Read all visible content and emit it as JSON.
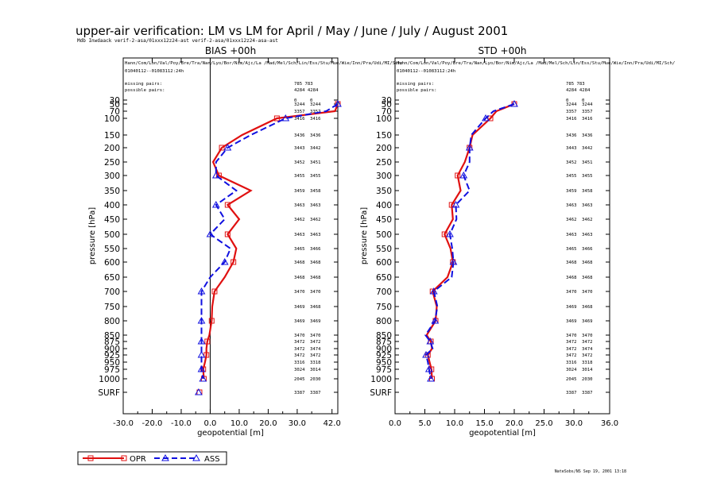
{
  "title": "upper-air verification: LM vs LM for April / May / June / July / August 2001",
  "subtitle": "Mdb Inwdaack verif-2-asa/01xxx12z24-ast verif-2-asa/01xxx12z24-asa-ast",
  "footer": "NateSobs/NS Sep 19, 2001 13:18",
  "legend": {
    "items": [
      {
        "label": "OPR",
        "color": "#e01010",
        "marker": "square",
        "dash": "solid"
      },
      {
        "label": "ASS",
        "color": "#1010e0",
        "marker": "triangle",
        "dash": "dashed"
      }
    ]
  },
  "panel_info": {
    "stations": "Hann/Com/Lon/Val/Poy/Bre/Tra/Nan/Lyo/Bor/Nim/Ajc/La /Mad/Mel/Sch/Lin/Ess/Stu/Mue/Wie/Inn/Pra/Udi/MI/Sch/",
    "period": "01040112--01083112:24h",
    "missing_label": "missing pairs:",
    "possible_label": "possible pairs:",
    "missing_values": "785  783",
    "possible_values": "4284 4284"
  },
  "y_axis": {
    "label": "pressure  [hPa]",
    "levels": [
      "30",
      "50",
      "70",
      "100",
      "150",
      "200",
      "250",
      "300",
      "350",
      "400",
      "450",
      "500",
      "550",
      "600",
      "650",
      "700",
      "750",
      "800",
      "850",
      "875",
      "900",
      "925",
      "950",
      "975",
      "1000",
      "SURF"
    ]
  },
  "pair_counts": [
    [
      "0",
      "0"
    ],
    [
      "3244",
      "3244"
    ],
    [
      "3357",
      "3357"
    ],
    [
      "3416",
      "3416"
    ],
    [
      "3436",
      "3436"
    ],
    [
      "3443",
      "3442"
    ],
    [
      "3452",
      "3451"
    ],
    [
      "3455",
      "3455"
    ],
    [
      "3459",
      "3458"
    ],
    [
      "3463",
      "3463"
    ],
    [
      "3462",
      "3462"
    ],
    [
      "3463",
      "3463"
    ],
    [
      "3465",
      "3466"
    ],
    [
      "3468",
      "3468"
    ],
    [
      "3468",
      "3468"
    ],
    [
      "3470",
      "3470"
    ],
    [
      "3469",
      "3468"
    ],
    [
      "3469",
      "3469"
    ],
    [
      "3470",
      "3470"
    ],
    [
      "3472",
      "3472"
    ],
    [
      "3472",
      "3474"
    ],
    [
      "3472",
      "3472"
    ],
    [
      "3316",
      "3318"
    ],
    [
      "3024",
      "3014"
    ],
    [
      "2045",
      "2030"
    ],
    [
      "3387",
      "3387"
    ]
  ],
  "chart_data": [
    {
      "type": "line",
      "title": "BIAS     +00h",
      "xlabel": "geopotential  [m]",
      "ylabel": "pressure  [hPa]",
      "xlim": [
        -30,
        45
      ],
      "x_ticks": [
        "-30.0",
        "-20.0",
        "-10.0",
        "0.0",
        "10.0",
        "20.0",
        "30.0",
        "42.0"
      ],
      "x_tick_values": [
        -30,
        -20,
        -10,
        0,
        10,
        20,
        30,
        42
      ],
      "zero_line": true,
      "categories": [
        "30",
        "50",
        "70",
        "100",
        "150",
        "200",
        "250",
        "300",
        "350",
        "400",
        "450",
        "500",
        "550",
        "600",
        "650",
        "700",
        "750",
        "800",
        "850",
        "875",
        "900",
        "925",
        "950",
        "975",
        "1000",
        "SURF"
      ],
      "series": [
        {
          "name": "OPR",
          "color": "#e01010",
          "values": [
            null,
            44,
            43,
            23,
            11,
            4,
            1,
            3,
            14,
            6,
            10,
            6,
            9,
            8,
            5,
            1.5,
            0.7,
            0.5,
            -0.3,
            -1,
            -1.3,
            -1.3,
            -1.8,
            -2.4,
            -2.2,
            -3.7
          ]
        },
        {
          "name": "ASS",
          "color": "#1010e0",
          "values": [
            null,
            44,
            40,
            26,
            14,
            6,
            2,
            2,
            9,
            2,
            5,
            0,
            7,
            5,
            0,
            -3,
            -3,
            -3,
            -3,
            -3,
            -3,
            -3,
            -3,
            -3,
            -2.5,
            -4
          ]
        }
      ]
    },
    {
      "type": "line",
      "title": "STD     +00h",
      "xlabel": "geopotential  [m]",
      "ylabel": "pressure  [hPa]",
      "xlim": [
        0,
        36
      ],
      "x_ticks": [
        "0.0",
        "5.0",
        "10.0",
        "15.0",
        "20.0",
        "25.0",
        "30.0",
        "36.0"
      ],
      "x_tick_values": [
        0,
        5,
        10,
        15,
        20,
        25,
        30,
        36
      ],
      "zero_line": false,
      "categories": [
        "30",
        "50",
        "70",
        "100",
        "150",
        "200",
        "250",
        "300",
        "350",
        "400",
        "450",
        "500",
        "550",
        "600",
        "650",
        "700",
        "750",
        "800",
        "850",
        "875",
        "900",
        "925",
        "950",
        "975",
        "1000",
        "SURF"
      ],
      "series": [
        {
          "name": "OPR",
          "color": "#e01010",
          "values": [
            null,
            20,
            17,
            16,
            13,
            12.5,
            11.7,
            10.5,
            11,
            9.5,
            9.7,
            8.3,
            9.3,
            9.7,
            8.8,
            6.3,
            7,
            6.8,
            5.3,
            6,
            6.2,
            5.5,
            5.8,
            6.1,
            6.2,
            null
          ]
        },
        {
          "name": "ASS",
          "color": "#1010e0",
          "values": [
            null,
            20,
            16.5,
            15.2,
            12.8,
            12.5,
            12.5,
            11.5,
            12.5,
            10.2,
            10.3,
            9.2,
            9.6,
            9.8,
            9.5,
            6.5,
            7.1,
            6.7,
            5.1,
            5.9,
            6.3,
            5.2,
            5.5,
            5.7,
            6,
            null
          ]
        }
      ]
    }
  ]
}
